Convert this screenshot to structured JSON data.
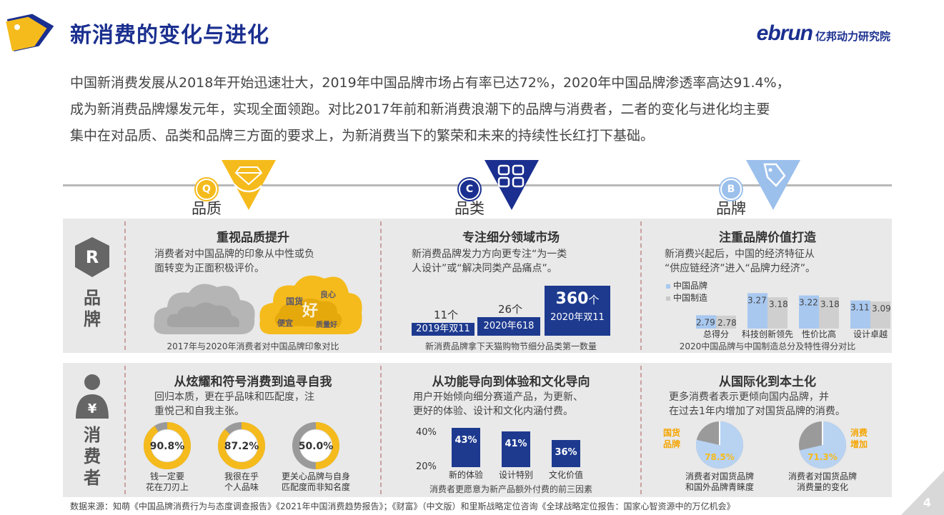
{
  "header": {
    "title": "新消费的变化与进化",
    "brand_en": "ebrun",
    "brand_cn": "亿邦动力研究院"
  },
  "intro": [
    "中国新消费发展从2018年开始迅速壮大，2019年中国品牌市场占有率已达72%，2020年中国品牌渗透率高达91.4%，",
    "成为新消费品牌爆发元年，实现全面领跑。对比2017年前和新消费浪潮下的品牌与消费者，二者的变化与进化均主要",
    "集中在对品质、品类和品牌三方面的要求上，为新消费当下的繁荣和未来的持续性长红打下基础。"
  ],
  "categories": [
    {
      "badge": "Q",
      "label": "品质",
      "color": "#f5bb1c",
      "icon": "gem-hand-icon"
    },
    {
      "badge": "C",
      "label": "品类",
      "color": "#1a2f8f",
      "icon": "grid-icon"
    },
    {
      "badge": "B",
      "label": "品牌",
      "color": "#9cc0ec",
      "icon": "tag-icon"
    }
  ],
  "rows": {
    "brand": {
      "letter": "R",
      "label": "品牌"
    },
    "consumer": {
      "symbol": "¥",
      "label": "消费者"
    }
  },
  "quality_panel": {
    "title": "重视品质提升",
    "desc": [
      "消费者对中国品牌的印象从中性或负",
      "面转变为正面积极评价。"
    ],
    "caption": "2017年与2020年消费者对中国品牌印象对比",
    "cloud_words": [
      "国货",
      "良心",
      "便宜",
      "好",
      "质量好"
    ]
  },
  "category_panel": {
    "title": "专注细分领域市场",
    "desc": [
      "新消费品牌发力方向更专注“为一类",
      "人设计”或“解决同类产品痛点”。"
    ],
    "bars": [
      {
        "value": "11个",
        "label": "2019年双11"
      },
      {
        "value": "26个",
        "label": "2020年618"
      },
      {
        "value_num": "360",
        "value_unit": "个",
        "label": "2020年双11"
      }
    ],
    "caption": "新消费品牌拿下天猫购物节细分品类第一数量"
  },
  "brand_panel": {
    "title": "注重品牌价值打造",
    "desc": [
      "新消费兴起后，中国的经济特征从",
      "“供应链经济”进入“品牌力经济”。"
    ],
    "legend": [
      "中国品牌",
      "中国制造"
    ],
    "caption": "2020中国品牌与中国制造总分及特性得分对比"
  },
  "chart_data": [
    {
      "type": "bar",
      "title": "",
      "categories": [
        "2019年双11",
        "2020年618",
        "2020年双11"
      ],
      "values": [
        11,
        26,
        360
      ],
      "ylabel": ""
    },
    {
      "type": "bar",
      "categories": [
        "总得分",
        "科技创新领先",
        "性价比高",
        "设计卓越"
      ],
      "series": [
        {
          "name": "中国品牌",
          "values": [
            2.79,
            3.27,
            3.22,
            3.11
          ],
          "labels": [
            "2.79",
            "3.27",
            "3.22",
            "3.11"
          ]
        },
        {
          "name": "中国制造",
          "values": [
            2.78,
            3.18,
            3.18,
            3.09
          ],
          "labels": [
            "2.78",
            "3.18",
            "3.18",
            "3.09"
          ]
        }
      ],
      "ylim": [
        2.5,
        3.4
      ]
    },
    {
      "type": "pie",
      "categories": [
        "钱一定要花在刀刃上",
        "我很在乎个人品味",
        "更关心品牌与自身匹配度而非知名度"
      ],
      "values": [
        90.8,
        87.2,
        50.0
      ],
      "labels": [
        "90.8%",
        "87.2%",
        "50.0%"
      ]
    },
    {
      "type": "bar",
      "categories": [
        "新的体验",
        "设计特别",
        "文化价值"
      ],
      "values": [
        43,
        41,
        36
      ],
      "labels": [
        "43%",
        "41%",
        "36%"
      ],
      "yticks": [
        "40%",
        "20%"
      ],
      "ylim": [
        20,
        45
      ]
    },
    {
      "type": "pie",
      "categories": [
        "消费者对国货品牌和国外品牌青睐度",
        "消费者对国货品牌消费量的变化"
      ],
      "values": [
        78.5,
        71.3
      ],
      "labels": [
        "78.5%",
        "71.3%"
      ],
      "annotations": [
        "国货品牌",
        "消费增加"
      ]
    }
  ],
  "consumer1": {
    "title": "从炫耀和符号消费到追寻自我",
    "desc": [
      "回归本质，更在乎品味和匹配度，注",
      "重悦己和自我主张。"
    ],
    "donuts": [
      {
        "value": "90.8%",
        "pct": 90.8,
        "label": [
          "钱一定要",
          "花在刀刃上"
        ]
      },
      {
        "value": "87.2%",
        "pct": 87.2,
        "label": [
          "我很在乎",
          "个人品味"
        ]
      },
      {
        "value": "50.0%",
        "pct": 50.0,
        "label": [
          "更关心品牌与自身",
          "匹配度而非知名度"
        ]
      }
    ]
  },
  "consumer2": {
    "title": "从功能导向到体验和文化导向",
    "desc": [
      "用户开始倾向细分赛道产品，为更新、",
      "更好的体验、设计和文化内涵付费。"
    ],
    "yticks": [
      "40%",
      "20%"
    ],
    "bars": [
      {
        "value": "43%",
        "label": "新的体验"
      },
      {
        "value": "41%",
        "label": "设计特别"
      },
      {
        "value": "36%",
        "label": "文化价值"
      }
    ],
    "caption": "消费者更愿意为新产品额外付费的前三因素"
  },
  "consumer3": {
    "title": "从国际化到本土化",
    "desc": [
      "更多消费者表示更倾向国内品牌，并",
      "在过去1年内增加了对国货品牌的消费。"
    ],
    "pies": [
      {
        "value": "78.5%",
        "pct": 78.5,
        "tag": [
          "国货",
          "品牌"
        ],
        "label": [
          "消费者对国货品牌",
          "和国外品牌青睐度"
        ]
      },
      {
        "value": "71.3%",
        "pct": 71.3,
        "tag": [
          "消费",
          "增加"
        ],
        "label": [
          "消费者对国货品牌",
          "消费量的变化"
        ]
      }
    ]
  },
  "footer": "数据来源：知萌《中国品牌消费行为与态度调查报告》《2021年中国消费趋势报告》；《财富》（中文版）和里斯战略定位咨询《全球战略定位报告：国家心智资源中的万亿机会》",
  "page_number": "4",
  "colors": {
    "navy": "#1a2f8f",
    "gold": "#f5bb1c",
    "light_blue": "#a8c8f0",
    "grey": "#c8c8c8"
  }
}
